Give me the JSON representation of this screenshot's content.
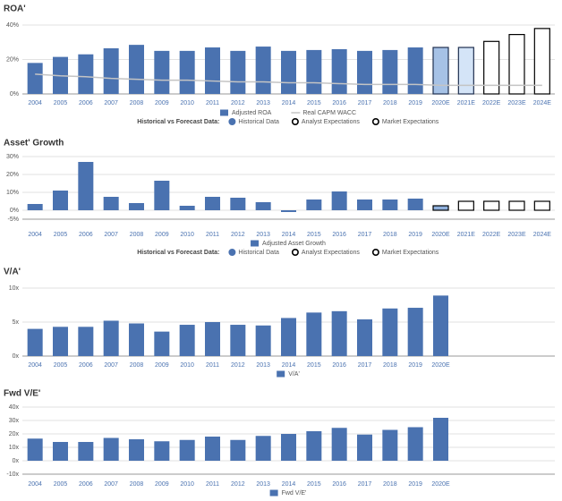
{
  "chart_data": [
    {
      "type": "bar",
      "title": "ROA'",
      "categories": [
        "2004",
        "2005",
        "2006",
        "2007",
        "2008",
        "2009",
        "2010",
        "2011",
        "2012",
        "2013",
        "2014",
        "2015",
        "2016",
        "2017",
        "2018",
        "2019",
        "2020E",
        "2021E",
        "2022E",
        "2023E",
        "2024E"
      ],
      "series": [
        {
          "name": "Adjusted ROA",
          "color": "#4a72b0",
          "values": [
            18,
            21.5,
            23,
            26.5,
            28.5,
            25,
            25,
            27,
            25,
            27.5,
            25,
            25.5,
            26,
            25,
            25.5,
            27,
            27,
            27,
            30.5,
            34.5,
            38
          ]
        },
        {
          "name": "Real CAPM WACC",
          "type": "line",
          "color": "#c4c4c4",
          "values": [
            11.5,
            10.5,
            10,
            9,
            8.5,
            8,
            8,
            7.5,
            7,
            7,
            6.5,
            6.5,
            6,
            5.5,
            5.5,
            5.5,
            5,
            5,
            5,
            5,
            5
          ]
        }
      ],
      "bar_fills": [
        "#4a72b0",
        "#4a72b0",
        "#4a72b0",
        "#4a72b0",
        "#4a72b0",
        "#4a72b0",
        "#4a72b0",
        "#4a72b0",
        "#4a72b0",
        "#4a72b0",
        "#4a72b0",
        "#4a72b0",
        "#4a72b0",
        "#4a72b0",
        "#4a72b0",
        "#4a72b0",
        "#a6c2e6",
        "#d4e4f7",
        "#ffffff",
        "#ffffff",
        "#ffffff"
      ],
      "bar_edges": [
        null,
        null,
        null,
        null,
        null,
        null,
        null,
        null,
        null,
        null,
        null,
        null,
        null,
        null,
        null,
        null,
        "#1f2f4f",
        "#1f2f4f",
        "#000000",
        "#000000",
        "#000000"
      ],
      "ylim": [
        0,
        40
      ],
      "yticks": [
        {
          "value": 0,
          "label": "0%"
        },
        {
          "value": 20,
          "label": "20%"
        },
        {
          "value": 40,
          "label": "40%"
        }
      ],
      "grid": true,
      "forecast_legend": {
        "label": "Historical vs Forecast Data:",
        "items": [
          {
            "name": "Historical Data",
            "color": "#4a72b0",
            "edge": "#4a72b0"
          },
          {
            "name": "Analyst Expectations",
            "color": "#ffffff",
            "edge": "#000000"
          },
          {
            "name": "Market Expectations",
            "color": "#ffffff",
            "edge": "#000000"
          }
        ]
      }
    },
    {
      "type": "bar",
      "title": "Asset' Growth",
      "categories": [
        "2004",
        "2005",
        "2006",
        "2007",
        "2008",
        "2009",
        "2010",
        "2011",
        "2012",
        "2013",
        "2014",
        "2015",
        "2016",
        "2017",
        "2018",
        "2019",
        "2020E",
        "2021E",
        "2022E",
        "2023E",
        "2024E"
      ],
      "series": [
        {
          "name": "Adjusted Asset Growth",
          "color": "#4a72b0",
          "values": [
            3.5,
            11,
            27,
            7.5,
            4,
            16.5,
            2.5,
            7.5,
            7,
            4.5,
            -1,
            6,
            10.5,
            6,
            6,
            6.5,
            2.5,
            5,
            5,
            5,
            5
          ]
        }
      ],
      "bar_fills": [
        "#4a72b0",
        "#4a72b0",
        "#4a72b0",
        "#4a72b0",
        "#4a72b0",
        "#4a72b0",
        "#4a72b0",
        "#4a72b0",
        "#4a72b0",
        "#4a72b0",
        "#4a72b0",
        "#4a72b0",
        "#4a72b0",
        "#4a72b0",
        "#4a72b0",
        "#4a72b0",
        "#8fb0dc",
        "#ffffff",
        "#ffffff",
        "#ffffff",
        "#ffffff"
      ],
      "bar_edges": [
        null,
        null,
        null,
        null,
        null,
        null,
        null,
        null,
        null,
        null,
        null,
        null,
        null,
        null,
        null,
        null,
        "#000000",
        "#000000",
        "#000000",
        "#000000",
        "#000000"
      ],
      "ylim": [
        -5,
        30
      ],
      "yticks": [
        {
          "value": -5,
          "label": "-5%"
        },
        {
          "value": 0,
          "label": "0%"
        },
        {
          "value": 10,
          "label": "10%"
        },
        {
          "value": 20,
          "label": "20%"
        },
        {
          "value": 30,
          "label": "30%"
        }
      ],
      "grid": true,
      "forecast_legend": {
        "label": "Historical vs Forecast Data:",
        "items": [
          {
            "name": "Historical Data",
            "color": "#4a72b0",
            "edge": "#4a72b0"
          },
          {
            "name": "Analyst Expectations",
            "color": "#ffffff",
            "edge": "#000000"
          },
          {
            "name": "Market Expectations",
            "color": "#ffffff",
            "edge": "#000000"
          }
        ]
      }
    },
    {
      "type": "bar",
      "title": "V/A'",
      "categories": [
        "2004",
        "2005",
        "2006",
        "2007",
        "2008",
        "2009",
        "2010",
        "2011",
        "2012",
        "2013",
        "2014",
        "2015",
        "2016",
        "2017",
        "2018",
        "2019",
        "2020E"
      ],
      "series": [
        {
          "name": "V/A'",
          "color": "#4a72b0",
          "values": [
            4,
            4.3,
            4.3,
            5.2,
            4.8,
            3.6,
            4.6,
            5,
            4.6,
            4.5,
            5.6,
            6.4,
            6.6,
            5.4,
            7,
            7.1,
            8.9
          ]
        }
      ],
      "ylim": [
        0,
        10
      ],
      "yticks": [
        {
          "value": 0,
          "label": "0x"
        },
        {
          "value": 5,
          "label": "5x"
        },
        {
          "value": 10,
          "label": "10x"
        }
      ],
      "grid": true
    },
    {
      "type": "bar",
      "title": "Fwd V/E'",
      "categories": [
        "2004",
        "2005",
        "2006",
        "2007",
        "2008",
        "2009",
        "2010",
        "2011",
        "2012",
        "2013",
        "2014",
        "2015",
        "2016",
        "2017",
        "2018",
        "2019",
        "2020E"
      ],
      "series": [
        {
          "name": "Fwd V/E'",
          "color": "#4a72b0",
          "values": [
            16.5,
            14,
            14,
            17,
            16,
            14.5,
            15.5,
            18,
            15.5,
            18.5,
            20,
            22,
            24.5,
            19.5,
            23,
            25,
            32
          ]
        }
      ],
      "ylim": [
        -10,
        40
      ],
      "yticks": [
        {
          "value": -10,
          "label": "-10x"
        },
        {
          "value": 0,
          "label": "0x"
        },
        {
          "value": 10,
          "label": "10x"
        },
        {
          "value": 20,
          "label": "20x"
        },
        {
          "value": 30,
          "label": "30x"
        },
        {
          "value": 40,
          "label": "40x"
        }
      ],
      "grid": true
    }
  ]
}
